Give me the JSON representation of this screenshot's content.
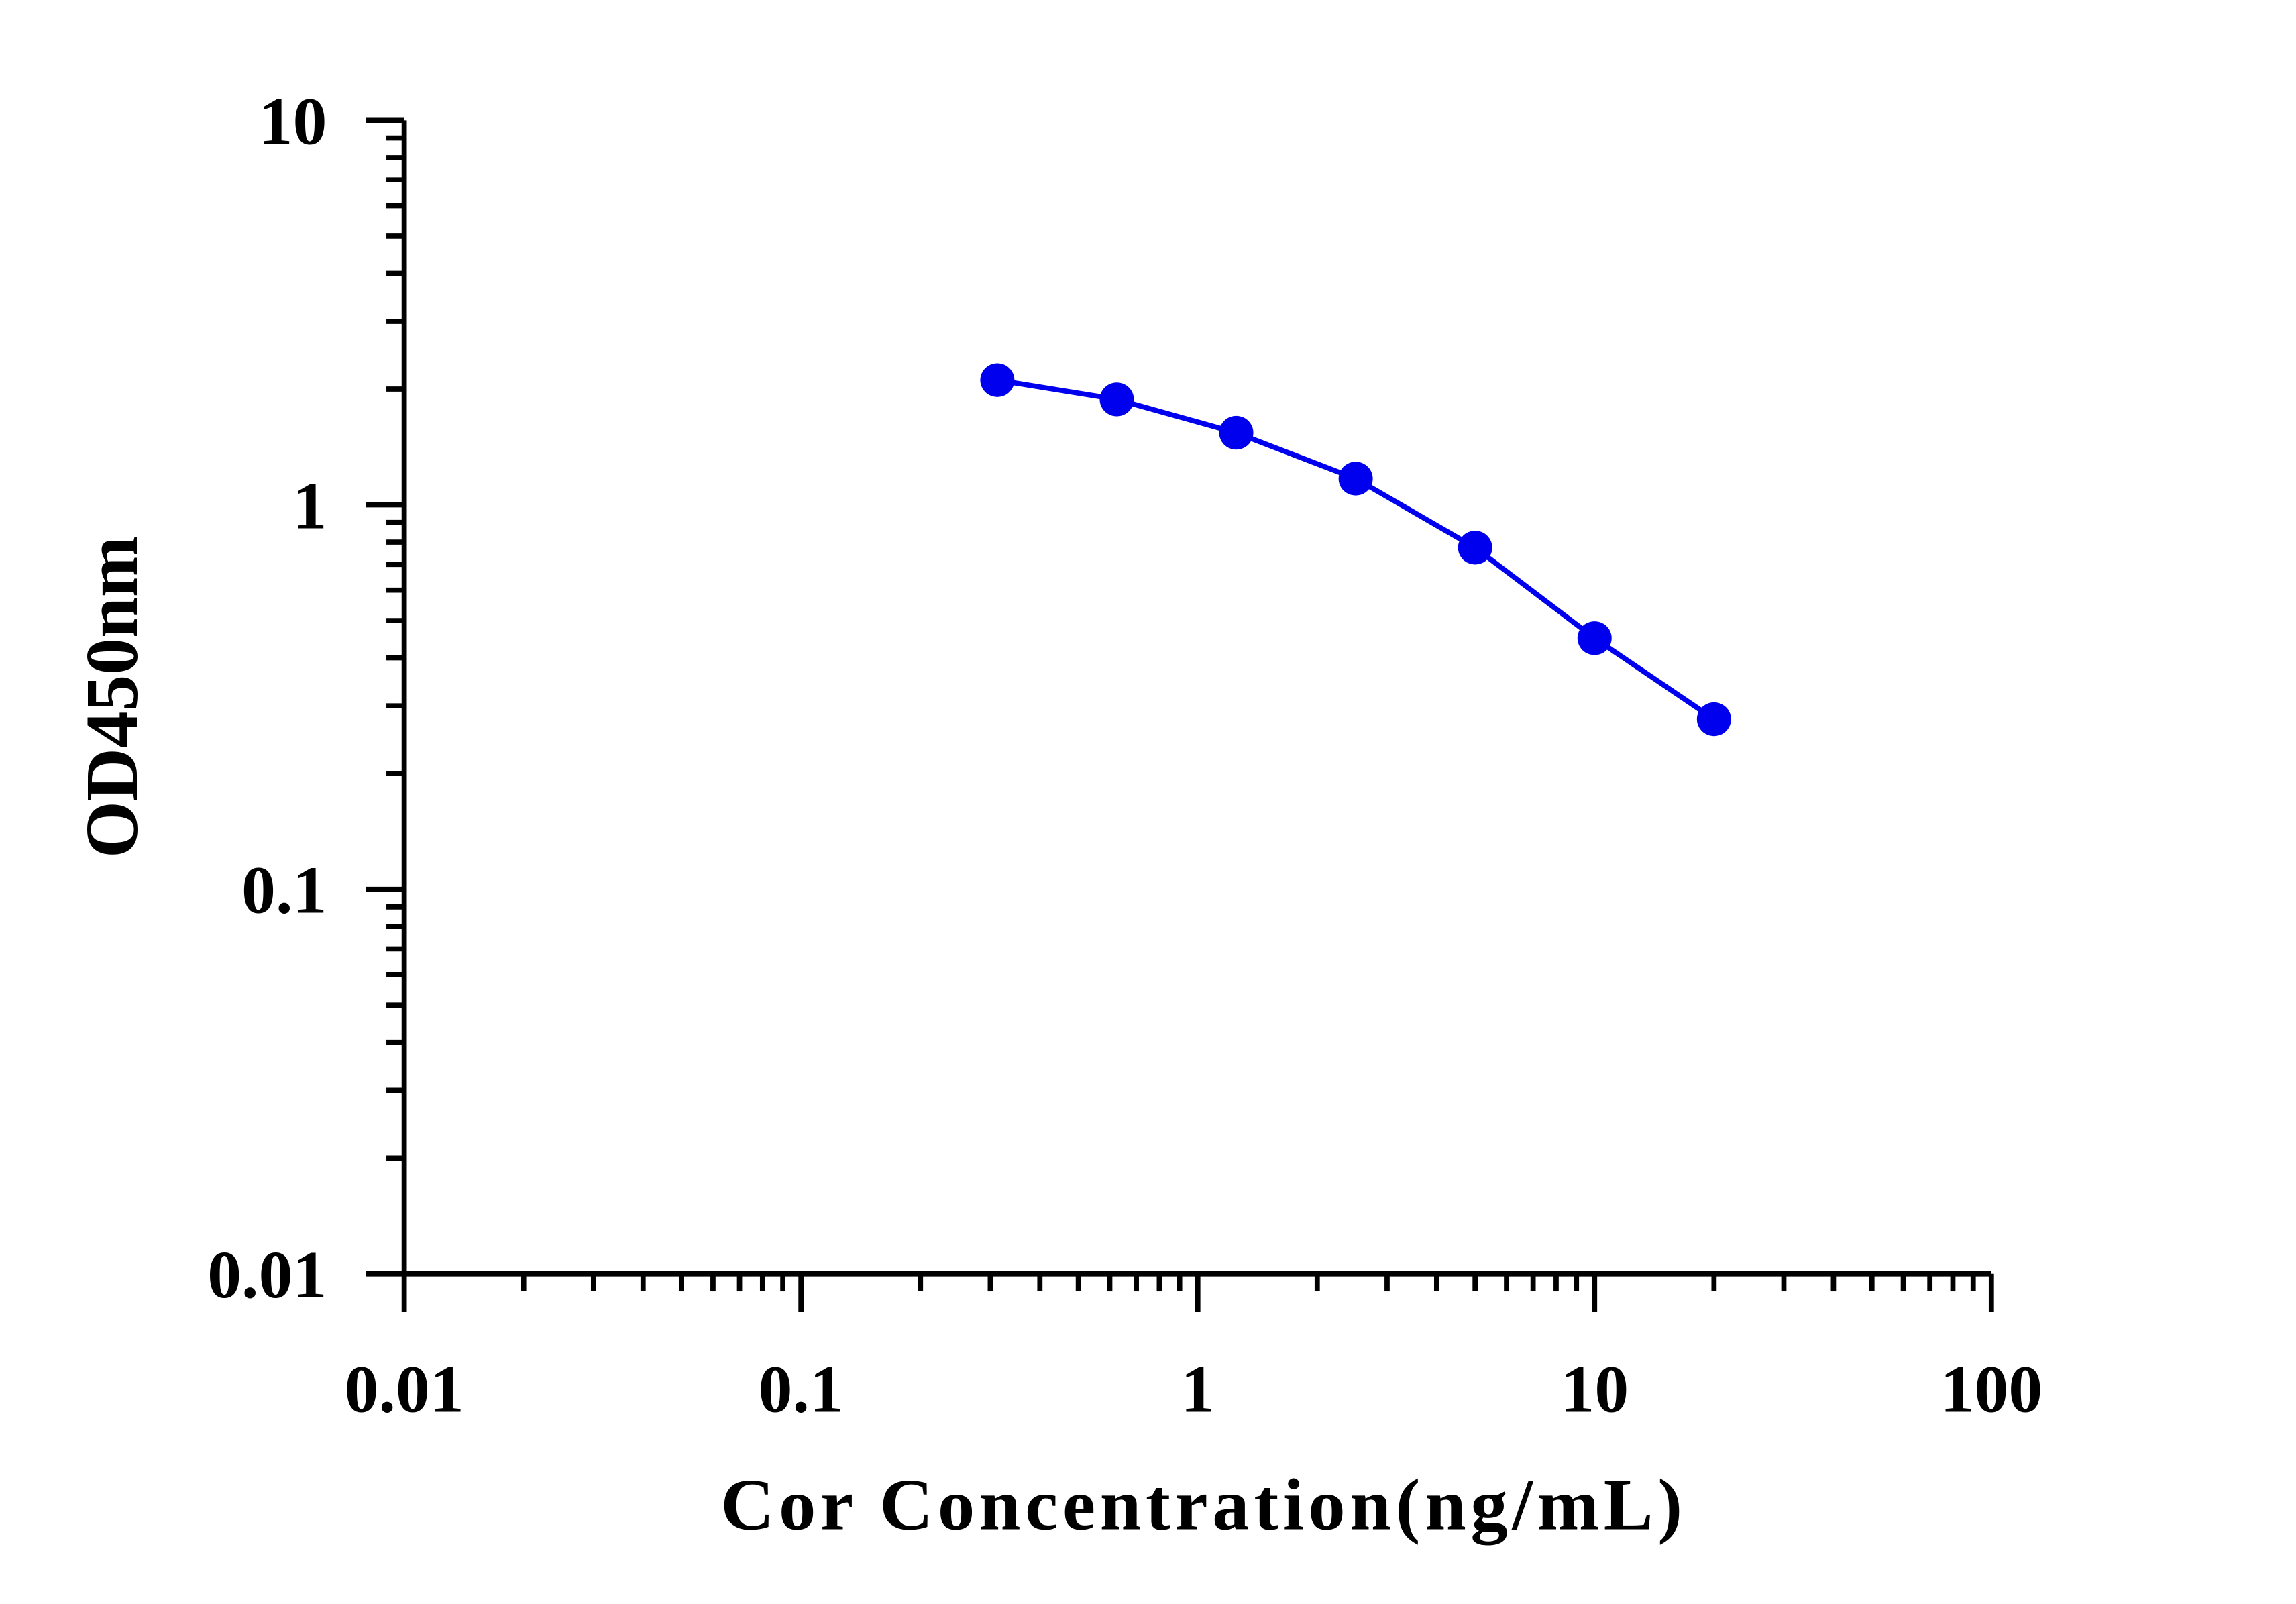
{
  "chart_data": {
    "type": "line",
    "xlabel": "Cor Concentration(ng/mL)",
    "ylabel": "OD450nm",
    "xscale": "log",
    "yscale": "log",
    "xlim": [
      0.01,
      100
    ],
    "xticks": [
      0.01,
      0.1,
      1,
      10,
      100
    ],
    "ylim": [
      0.01,
      10
    ],
    "yticks": [
      0.01,
      0.1,
      1,
      10
    ],
    "x": [
      0.3125,
      0.625,
      1.25,
      2.5,
      5,
      10,
      20
    ],
    "series": [
      {
        "color": "#0000ee",
        "values": [
          2.11,
          1.88,
          1.54,
          1.17,
          0.774,
          0.45,
          0.277
        ]
      }
    ]
  }
}
